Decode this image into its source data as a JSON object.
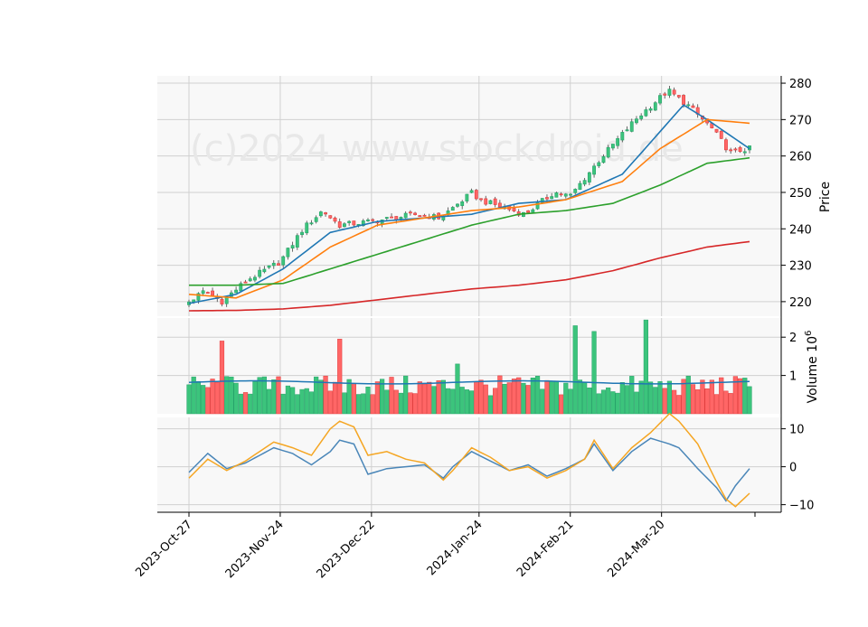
{
  "watermark": "(c)2024 www.stockdroid.de",
  "colors": {
    "up": "#26a269",
    "up_fill": "#3cc47c",
    "down": "#e03c3c",
    "down_fill": "#ff6666",
    "ma_fast": "#1f77b4",
    "ma_mid": "#ff7f0e",
    "ma_slow": "#2ca02c",
    "ma_long": "#d62728",
    "vol_ma": "#1f77b4",
    "macd": "#4a86b8",
    "signal": "#f5a623",
    "panel_bg": "#f8f8f8",
    "grid": "#d0d0d0"
  },
  "chart_data": [
    {
      "type": "candlestick",
      "panel": "price",
      "ylabel": "Price",
      "ylim": [
        216,
        282
      ],
      "yticks": [
        220,
        230,
        240,
        250,
        260,
        270,
        280
      ],
      "x_range": [
        "2023-10-27",
        "2024-04-16"
      ],
      "xticks": [
        "2023-Oct-27",
        "2023-Nov-24",
        "2023-Dec-22",
        "2024-Jan-24",
        "2024-Feb-21",
        "2024-Mar-20"
      ],
      "grid": true,
      "legend": "none",
      "trend_checkpoints": [
        {
          "date": "2023-10-27",
          "close": 220
        },
        {
          "date": "2023-11-01",
          "close": 223
        },
        {
          "date": "2023-11-06",
          "close": 220
        },
        {
          "date": "2023-11-14",
          "close": 226
        },
        {
          "date": "2023-11-24",
          "close": 231
        },
        {
          "date": "2023-12-01",
          "close": 240
        },
        {
          "date": "2023-12-07",
          "close": 245
        },
        {
          "date": "2023-12-12",
          "close": 241
        },
        {
          "date": "2023-12-22",
          "close": 242
        },
        {
          "date": "2024-01-05",
          "close": 244
        },
        {
          "date": "2024-01-12",
          "close": 243
        },
        {
          "date": "2024-01-22",
          "close": 250
        },
        {
          "date": "2024-01-24",
          "close": 248
        },
        {
          "date": "2024-02-07",
          "close": 244
        },
        {
          "date": "2024-02-16",
          "close": 250
        },
        {
          "date": "2024-02-21",
          "close": 249
        },
        {
          "date": "2024-03-01",
          "close": 259
        },
        {
          "date": "2024-03-12",
          "close": 270
        },
        {
          "date": "2024-03-22",
          "close": 278
        },
        {
          "date": "2024-03-28",
          "close": 274
        },
        {
          "date": "2024-04-04",
          "close": 268
        },
        {
          "date": "2024-04-10",
          "close": 261
        },
        {
          "date": "2024-04-16",
          "close": 262
        }
      ],
      "series": [
        {
          "ma_checkpoints": [
            [
              0,
              219.5
            ],
            [
              10,
              222
            ],
            [
              20,
              229
            ],
            [
              30,
              239
            ],
            [
              40,
              242
            ],
            [
              50,
              243
            ],
            [
              60,
              244
            ],
            [
              70,
              247
            ],
            [
              80,
              248
            ],
            [
              92,
              255
            ],
            [
              105,
              274
            ],
            [
              110,
              270
            ],
            [
              119,
              262
            ]
          ]
        },
        {
          "ma_checkpoints": [
            [
              0,
              222
            ],
            [
              10,
              221
            ],
            [
              20,
              226
            ],
            [
              30,
              235
            ],
            [
              40,
              241
            ],
            [
              50,
              243
            ],
            [
              60,
              245
            ],
            [
              70,
              246
            ],
            [
              80,
              248
            ],
            [
              92,
              253
            ],
            [
              100,
              262
            ],
            [
              110,
              270
            ],
            [
              119,
              269
            ]
          ]
        },
        {
          "ma_checkpoints": [
            [
              0,
              224.5
            ],
            [
              10,
              224.5
            ],
            [
              20,
              225
            ],
            [
              30,
              229
            ],
            [
              40,
              233
            ],
            [
              50,
              237
            ],
            [
              60,
              241
            ],
            [
              70,
              244
            ],
            [
              80,
              245
            ],
            [
              90,
              247
            ],
            [
              100,
              252
            ],
            [
              110,
              258
            ],
            [
              119,
              259.5
            ]
          ]
        },
        {
          "ma_checkpoints": [
            [
              0,
              217.5
            ],
            [
              10,
              217.6
            ],
            [
              20,
              218
            ],
            [
              30,
              219
            ],
            [
              40,
              220.5
            ],
            [
              50,
              222
            ],
            [
              60,
              223.5
            ],
            [
              70,
              224.5
            ],
            [
              80,
              226
            ],
            [
              90,
              228.5
            ],
            [
              100,
              232
            ],
            [
              110,
              235
            ],
            [
              119,
              236.5
            ]
          ]
        }
      ]
    },
    {
      "type": "bar",
      "panel": "volume",
      "ylabel": "Volume  10^6",
      "ylim": [
        0,
        2.5
      ],
      "yticks": [
        1,
        2
      ],
      "volume_ma_level": 0.82,
      "spikes": [
        {
          "date": "2023-11-06",
          "value": 1.9
        },
        {
          "date": "2023-12-12",
          "value": 1.95
        },
        {
          "date": "2024-01-18",
          "value": 1.3
        },
        {
          "date": "2024-02-22",
          "value": 2.3
        },
        {
          "date": "2024-02-28",
          "value": 2.15
        },
        {
          "date": "2024-03-15",
          "value": 2.45
        }
      ]
    },
    {
      "type": "line",
      "panel": "oscillator",
      "ylim": [
        -12,
        13
      ],
      "yticks": [
        -10,
        0,
        10
      ],
      "series": [
        {
          "points": [
            [
              0,
              -1.5
            ],
            [
              4,
              3.5
            ],
            [
              8,
              -0.5
            ],
            [
              12,
              1
            ],
            [
              18,
              5
            ],
            [
              22,
              3.5
            ],
            [
              26,
              0.5
            ],
            [
              30,
              4
            ],
            [
              32,
              7
            ],
            [
              35,
              6
            ],
            [
              38,
              -2
            ],
            [
              42,
              -0.5
            ],
            [
              46,
              0
            ],
            [
              50,
              0.5
            ],
            [
              54,
              -3
            ],
            [
              56,
              0
            ],
            [
              60,
              4
            ],
            [
              64,
              1.5
            ],
            [
              68,
              -1
            ],
            [
              72,
              0.5
            ],
            [
              76,
              -2.5
            ],
            [
              80,
              -0.5
            ],
            [
              84,
              2
            ],
            [
              86,
              6
            ],
            [
              90,
              -1
            ],
            [
              94,
              4
            ],
            [
              98,
              7.5
            ],
            [
              102,
              6
            ],
            [
              104,
              5
            ],
            [
              108,
              -0.5
            ],
            [
              112,
              -5.5
            ],
            [
              114,
              -9
            ],
            [
              116,
              -5
            ],
            [
              119,
              -0.5
            ]
          ]
        },
        {
          "points": [
            [
              0,
              -3
            ],
            [
              4,
              2
            ],
            [
              8,
              -1
            ],
            [
              12,
              1.5
            ],
            [
              18,
              6.5
            ],
            [
              22,
              5
            ],
            [
              26,
              3
            ],
            [
              30,
              10
            ],
            [
              32,
              12
            ],
            [
              35,
              10.5
            ],
            [
              38,
              3
            ],
            [
              42,
              4
            ],
            [
              46,
              2
            ],
            [
              50,
              1
            ],
            [
              54,
              -3.5
            ],
            [
              56,
              -1
            ],
            [
              60,
              5
            ],
            [
              64,
              2.5
            ],
            [
              68,
              -1
            ],
            [
              72,
              0
            ],
            [
              76,
              -3
            ],
            [
              80,
              -1
            ],
            [
              84,
              2
            ],
            [
              86,
              7
            ],
            [
              90,
              -0.5
            ],
            [
              94,
              5
            ],
            [
              98,
              9
            ],
            [
              102,
              14
            ],
            [
              104,
              12
            ],
            [
              108,
              6
            ],
            [
              112,
              -4
            ],
            [
              114,
              -8.5
            ],
            [
              116,
              -10.5
            ],
            [
              119,
              -7
            ]
          ]
        }
      ]
    }
  ]
}
